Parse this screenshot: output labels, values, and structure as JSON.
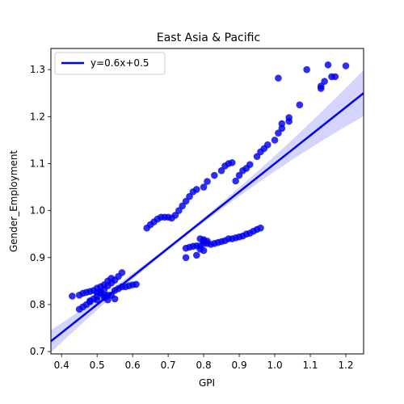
{
  "chart_data": {
    "type": "scatter",
    "title": "East Asia & Pacific",
    "xlabel": "GPI",
    "ylabel": "Gender_Employment",
    "xlim": [
      0.37,
      1.25
    ],
    "ylim": [
      0.695,
      1.345
    ],
    "xticks": [
      0.4,
      0.5,
      0.6,
      0.7,
      0.8,
      0.9,
      1.0,
      1.1,
      1.2
    ],
    "xtick_labels": [
      "0.4",
      "0.5",
      "0.6",
      "0.7",
      "0.8",
      "0.9",
      "1.0",
      "1.1",
      "1.2"
    ],
    "yticks": [
      0.7,
      0.8,
      0.9,
      1.0,
      1.1,
      1.2,
      1.3
    ],
    "ytick_labels": [
      "0.7",
      "0.8",
      "0.9",
      "1.0",
      "1.1",
      "1.2",
      "1.3"
    ],
    "grid": false,
    "legend": {
      "placement": "top-left",
      "entries": [
        "y=0.6x+0.5"
      ]
    },
    "colors": {
      "points": "#0000ee",
      "line": "#0000ee",
      "band": "#ccccff"
    },
    "regression": {
      "slope": 0.6,
      "intercept": 0.5,
      "label": "y=0.6x+0.5",
      "ci_low_x": 0.37,
      "ci_high_x": 1.25
    },
    "series": [
      {
        "points": [
          [
            0.43,
            0.818
          ],
          [
            0.45,
            0.82
          ],
          [
            0.46,
            0.824
          ],
          [
            0.47,
            0.826
          ],
          [
            0.48,
            0.828
          ],
          [
            0.49,
            0.83
          ],
          [
            0.5,
            0.826
          ],
          [
            0.51,
            0.824
          ],
          [
            0.52,
            0.82
          ],
          [
            0.53,
            0.82
          ],
          [
            0.54,
            0.82
          ],
          [
            0.55,
            0.83
          ],
          [
            0.56,
            0.834
          ],
          [
            0.57,
            0.838
          ],
          [
            0.58,
            0.838
          ],
          [
            0.59,
            0.84
          ],
          [
            0.6,
            0.842
          ],
          [
            0.61,
            0.843
          ],
          [
            0.45,
            0.79
          ],
          [
            0.46,
            0.795
          ],
          [
            0.47,
            0.8
          ],
          [
            0.48,
            0.806
          ],
          [
            0.49,
            0.812
          ],
          [
            0.5,
            0.818
          ],
          [
            0.51,
            0.826
          ],
          [
            0.52,
            0.832
          ],
          [
            0.53,
            0.84
          ],
          [
            0.54,
            0.846
          ],
          [
            0.55,
            0.852
          ],
          [
            0.56,
            0.86
          ],
          [
            0.57,
            0.868
          ],
          [
            0.5,
            0.835
          ],
          [
            0.51,
            0.838
          ],
          [
            0.52,
            0.842
          ],
          [
            0.53,
            0.85
          ],
          [
            0.54,
            0.856
          ],
          [
            0.48,
            0.808
          ],
          [
            0.5,
            0.81
          ],
          [
            0.52,
            0.815
          ],
          [
            0.53,
            0.81
          ],
          [
            0.55,
            0.812
          ],
          [
            0.64,
            0.963
          ],
          [
            0.65,
            0.97
          ],
          [
            0.66,
            0.976
          ],
          [
            0.67,
            0.982
          ],
          [
            0.68,
            0.986
          ],
          [
            0.69,
            0.986
          ],
          [
            0.7,
            0.986
          ],
          [
            0.71,
            0.984
          ],
          [
            0.72,
            0.99
          ],
          [
            0.73,
            1.0
          ],
          [
            0.74,
            1.01
          ],
          [
            0.75,
            1.02
          ],
          [
            0.76,
            1.03
          ],
          [
            0.77,
            1.04
          ],
          [
            0.78,
            1.045
          ],
          [
            0.8,
            1.05
          ],
          [
            0.81,
            1.062
          ],
          [
            0.83,
            1.075
          ],
          [
            0.85,
            1.085
          ],
          [
            0.86,
            1.095
          ],
          [
            0.87,
            1.1
          ],
          [
            0.88,
            1.102
          ],
          [
            0.89,
            1.063
          ],
          [
            0.9,
            1.075
          ],
          [
            0.91,
            1.085
          ],
          [
            0.92,
            1.09
          ],
          [
            0.93,
            1.098
          ],
          [
            0.95,
            1.115
          ],
          [
            0.96,
            1.125
          ],
          [
            0.97,
            1.132
          ],
          [
            0.98,
            1.14
          ],
          [
            1.0,
            1.15
          ],
          [
            1.01,
            1.165
          ],
          [
            1.02,
            1.175
          ],
          [
            1.02,
            1.185
          ],
          [
            1.04,
            1.19
          ],
          [
            1.04,
            1.198
          ],
          [
            1.07,
            1.225
          ],
          [
            1.09,
            1.3
          ],
          [
            1.01,
            1.282
          ],
          [
            1.13,
            1.26
          ],
          [
            1.14,
            1.275
          ],
          [
            1.15,
            1.31
          ],
          [
            1.16,
            1.285
          ],
          [
            1.17,
            1.285
          ],
          [
            1.2,
            1.308
          ],
          [
            1.13,
            1.265
          ],
          [
            0.75,
            0.9
          ],
          [
            0.75,
            0.92
          ],
          [
            0.76,
            0.922
          ],
          [
            0.77,
            0.924
          ],
          [
            0.78,
            0.925
          ],
          [
            0.78,
            0.905
          ],
          [
            0.79,
            0.925
          ],
          [
            0.8,
            0.93
          ],
          [
            0.8,
            0.935
          ],
          [
            0.81,
            0.935
          ],
          [
            0.82,
            0.928
          ],
          [
            0.83,
            0.93
          ],
          [
            0.84,
            0.932
          ],
          [
            0.85,
            0.934
          ],
          [
            0.86,
            0.936
          ],
          [
            0.87,
            0.94
          ],
          [
            0.88,
            0.94
          ],
          [
            0.89,
            0.942
          ],
          [
            0.9,
            0.944
          ],
          [
            0.91,
            0.946
          ],
          [
            0.92,
            0.95
          ],
          [
            0.93,
            0.952
          ],
          [
            0.94,
            0.956
          ],
          [
            0.95,
            0.96
          ],
          [
            0.96,
            0.963
          ],
          [
            0.79,
            0.94
          ],
          [
            0.8,
            0.938
          ],
          [
            0.81,
            0.93
          ],
          [
            0.79,
            0.918
          ],
          [
            0.8,
            0.915
          ]
        ]
      }
    ]
  }
}
